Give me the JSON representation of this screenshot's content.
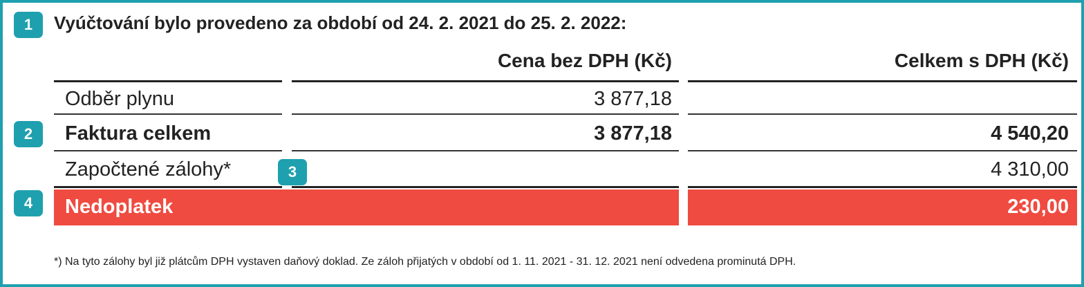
{
  "header": {
    "title": "Vyúčtování bylo provedeno za období od 24. 2. 2021 do 25. 2. 2022:"
  },
  "badges": [
    "1",
    "2",
    "3",
    "4"
  ],
  "table": {
    "columns": [
      "Cena bez DPH (Kč)",
      "Celkem s DPH (Kč)"
    ],
    "rows": [
      {
        "label": "Odběr plynu",
        "price": "3 877,18"
      },
      {
        "label": "Faktura celkem",
        "price": "3 877,18",
        "total": "4 540,20"
      },
      {
        "label": "Započtené zálohy*",
        "total": "4 310,00"
      },
      {
        "label": "Nedoplatek",
        "total": "230,00"
      }
    ]
  },
  "footnote": "*) Na tyto zálohy byl již plátcům DPH vystaven daňový doklad. Ze záloh přijatých v období od 1. 11. 2021 - 31. 12. 2021 není odvedena prominutá DPH."
}
